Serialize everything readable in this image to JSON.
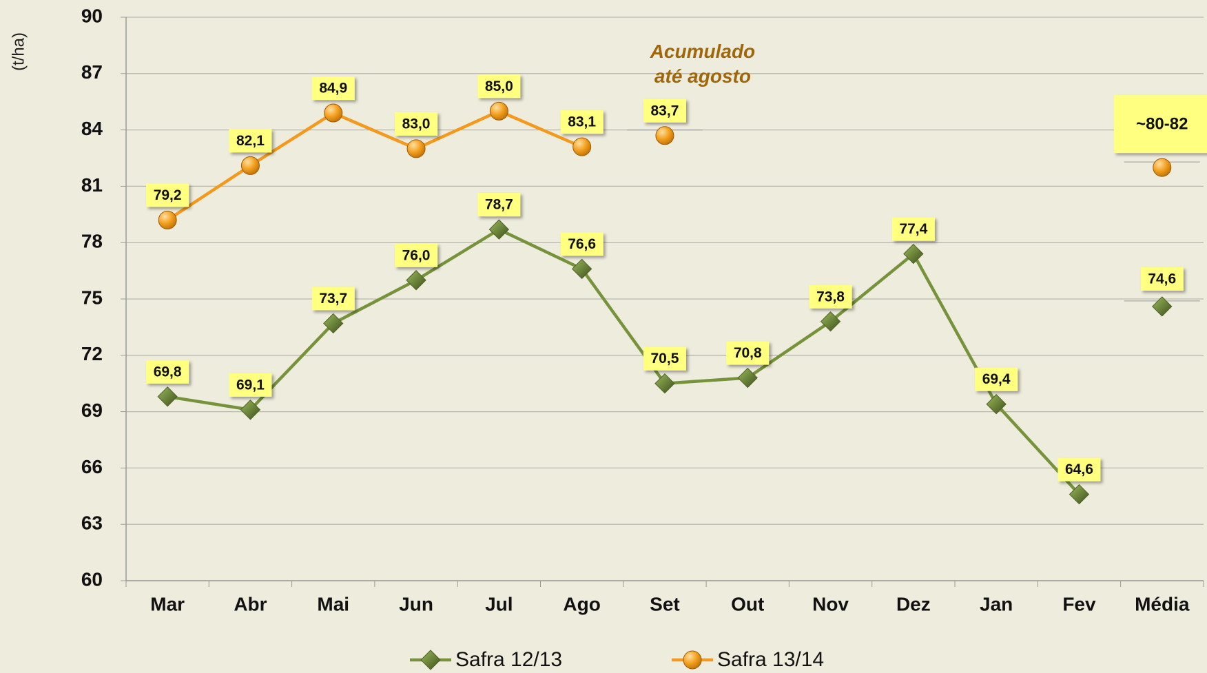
{
  "chart_data": {
    "type": "line",
    "y_axis_label": "(t/ha)",
    "categories": [
      "Mar",
      "Abr",
      "Mai",
      "Jun",
      "Jul",
      "Ago",
      "Set",
      "Out",
      "Nov",
      "Dez",
      "Jan",
      "Fev",
      "Média"
    ],
    "series": [
      {
        "name": "Safra 12/13",
        "color": "#76933c",
        "marker": "diamond",
        "values": [
          69.8,
          69.1,
          73.7,
          76.0,
          78.7,
          76.6,
          70.5,
          70.8,
          73.8,
          77.4,
          69.4,
          64.6,
          null
        ],
        "value_labels": [
          "69,8",
          "69,1",
          "73,7",
          "76,0",
          "78,7",
          "76,6",
          "70,5",
          "70,8",
          "73,8",
          "77,4",
          "69,4",
          "64,6",
          null
        ],
        "average": 74.6,
        "average_label": "74,6"
      },
      {
        "name": "Safra 13/14",
        "color": "#f39a1e",
        "marker": "circle",
        "values": [
          79.2,
          82.1,
          84.9,
          83.0,
          85.0,
          83.1,
          null,
          null,
          null,
          null,
          null,
          null,
          null
        ],
        "value_labels": [
          "79,2",
          "82,1",
          "84,9",
          "83,0",
          "85,0",
          "83,1",
          null,
          null,
          null,
          null,
          null,
          null,
          null
        ],
        "average": 82,
        "average_label": "~80-82"
      }
    ],
    "annotation": {
      "text": [
        "Acumulado",
        "até agosto"
      ],
      "category": "Set",
      "value": 83.7,
      "value_label": "83,7"
    },
    "ylim": [
      60,
      90
    ],
    "yticks": [
      60,
      63,
      66,
      69,
      72,
      75,
      78,
      81,
      84,
      87,
      90
    ],
    "grid": true,
    "legend": "bottom"
  }
}
